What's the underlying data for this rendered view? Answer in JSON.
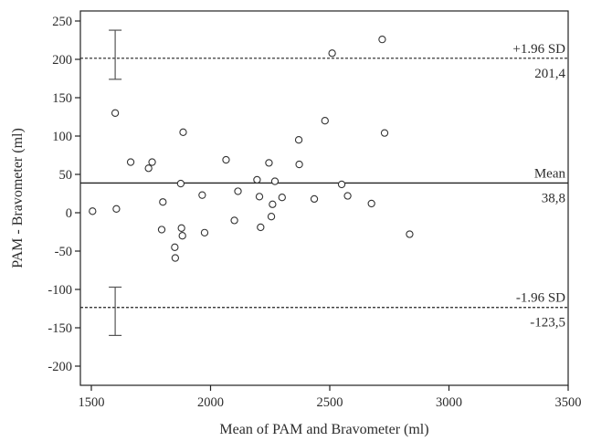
{
  "chart_data": {
    "type": "scatter",
    "title": "",
    "xlabel": "Mean of PAM and Bravometer (ml)",
    "ylabel": "PAM - Bravometer (ml)",
    "xlim": [
      1500,
      3500
    ],
    "ylim": [
      -210,
      255
    ],
    "x_ticks": [
      1500,
      2000,
      2500,
      3000,
      3500
    ],
    "y_ticks": [
      -200,
      -150,
      -100,
      -50,
      0,
      50,
      100,
      150,
      200,
      250
    ],
    "grid": false,
    "points": [
      {
        "x": 1505,
        "y": 2
      },
      {
        "x": 1600,
        "y": 130
      },
      {
        "x": 1605,
        "y": 5
      },
      {
        "x": 1665,
        "y": 66
      },
      {
        "x": 1740,
        "y": 58
      },
      {
        "x": 1755,
        "y": 66
      },
      {
        "x": 1795,
        "y": -22
      },
      {
        "x": 1800,
        "y": 14
      },
      {
        "x": 1850,
        "y": -45
      },
      {
        "x": 1852,
        "y": -59
      },
      {
        "x": 1875,
        "y": 38
      },
      {
        "x": 1878,
        "y": -20
      },
      {
        "x": 1882,
        "y": -30
      },
      {
        "x": 1885,
        "y": 105
      },
      {
        "x": 1965,
        "y": 23
      },
      {
        "x": 1975,
        "y": -26
      },
      {
        "x": 2065,
        "y": 69
      },
      {
        "x": 2100,
        "y": -10
      },
      {
        "x": 2115,
        "y": 28
      },
      {
        "x": 2195,
        "y": 43
      },
      {
        "x": 2205,
        "y": 21
      },
      {
        "x": 2210,
        "y": -19
      },
      {
        "x": 2245,
        "y": 65
      },
      {
        "x": 2255,
        "y": -5
      },
      {
        "x": 2260,
        "y": 11
      },
      {
        "x": 2270,
        "y": 41
      },
      {
        "x": 2300,
        "y": 20
      },
      {
        "x": 2370,
        "y": 95
      },
      {
        "x": 2372,
        "y": 63
      },
      {
        "x": 2435,
        "y": 18
      },
      {
        "x": 2480,
        "y": 120
      },
      {
        "x": 2510,
        "y": 208
      },
      {
        "x": 2550,
        "y": 37
      },
      {
        "x": 2575,
        "y": 22
      },
      {
        "x": 2675,
        "y": 12
      },
      {
        "x": 2720,
        "y": 226
      },
      {
        "x": 2730,
        "y": 104
      },
      {
        "x": 2835,
        "y": -28
      }
    ],
    "reference_lines": {
      "mean": {
        "value": 38.8,
        "name": "Mean",
        "label": "38,8"
      },
      "upper": {
        "value": 201.4,
        "name": "+1.96 SD",
        "label": "201,4"
      },
      "lower": {
        "value": -123.5,
        "name": "-1.96 SD",
        "label": "-123,5"
      }
    },
    "error_bars": [
      {
        "x": 1600,
        "center": 201.4,
        "low": 174,
        "high": 238
      },
      {
        "x": 1600,
        "center": -123.5,
        "low": -160,
        "high": -97
      }
    ]
  }
}
